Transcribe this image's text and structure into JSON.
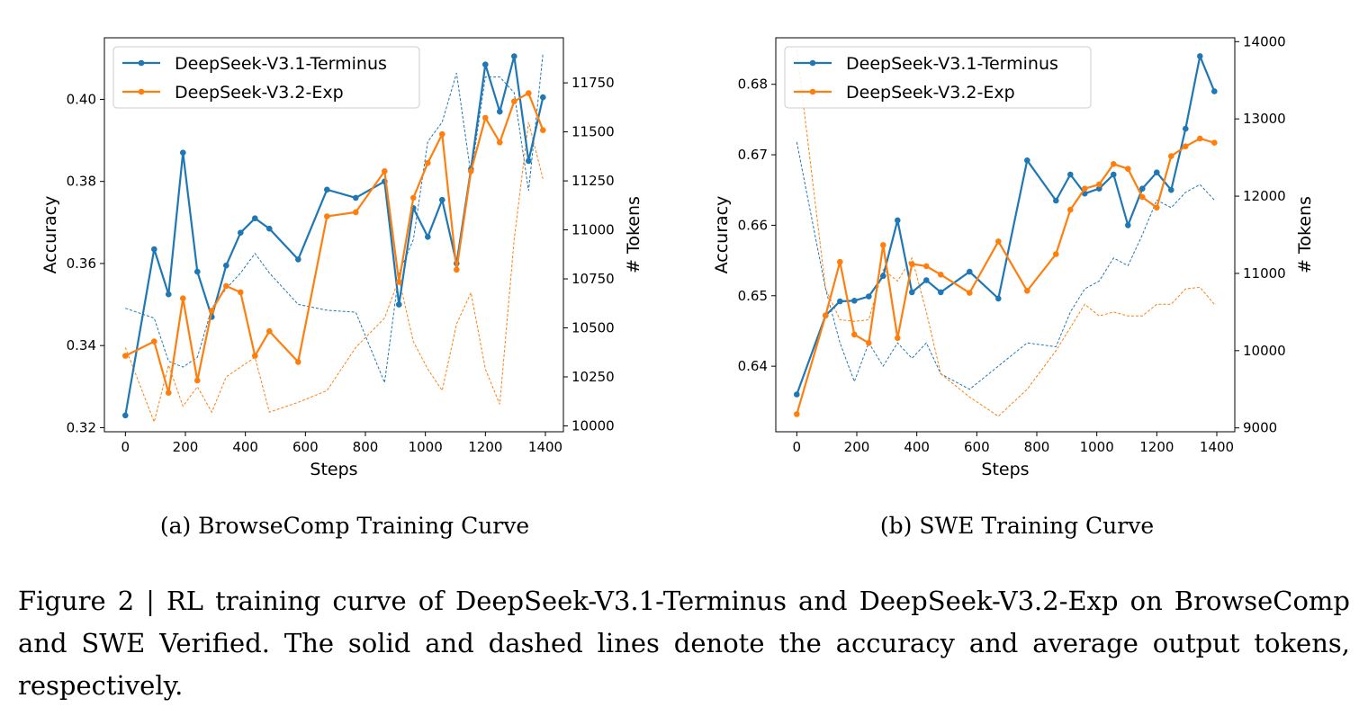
{
  "caption": "Figure 2 | RL training curve of DeepSeek-V3.1-Terminus and DeepSeek-V3.2-Exp on BrowseComp and SWE Verified. The solid and dashed lines denote the accuracy and average output tokens, respectively.",
  "colors": {
    "v31": "#1f77b4",
    "v32": "#ff7f0e"
  },
  "chart_data": [
    {
      "type": "line",
      "subcaption": "(a) BrowseComp Training Curve",
      "xlabel": "Steps",
      "ylabel": "Accuracy",
      "y2label": "# Tokens",
      "xlim": [
        -70,
        1460
      ],
      "ylim": [
        0.319,
        0.415
      ],
      "y2lim": [
        9970,
        11980
      ],
      "xticks": [
        0,
        200,
        400,
        600,
        800,
        1000,
        1200,
        1400
      ],
      "yticks": [
        0.32,
        0.34,
        0.36,
        0.38,
        0.4
      ],
      "ytick_labels": [
        "0.32",
        "0.34",
        "0.36",
        "0.38",
        "0.40"
      ],
      "y2ticks": [
        10000,
        10250,
        10500,
        10750,
        11000,
        11250,
        11500,
        11750
      ],
      "y2tick_labels": [
        "10000",
        "10250",
        "10500",
        "10750",
        "11000",
        "11250",
        "11500",
        "11750"
      ],
      "legend_position": "upper left",
      "series": [
        {
          "name": "DeepSeek-V3.1-Terminus",
          "color_key": "v31",
          "axis": "accuracy",
          "x": [
            0,
            96,
            144,
            192,
            240,
            288,
            336,
            384,
            432,
            480,
            576,
            672,
            768,
            864,
            912,
            960,
            1008,
            1056,
            1104,
            1152,
            1200,
            1248,
            1296,
            1344,
            1392
          ],
          "y": [
            0.323,
            0.3635,
            0.3525,
            0.387,
            0.358,
            0.347,
            0.3595,
            0.3675,
            0.371,
            0.3685,
            0.361,
            0.378,
            0.376,
            0.38,
            0.35,
            0.3735,
            0.3665,
            0.3755,
            0.36,
            0.383,
            0.4085,
            0.397,
            0.4105,
            0.385,
            0.4005
          ]
        },
        {
          "name": "DeepSeek-V3.2-Exp",
          "color_key": "v32",
          "axis": "accuracy",
          "x": [
            0,
            96,
            144,
            192,
            240,
            288,
            336,
            384,
            432,
            480,
            576,
            672,
            768,
            864,
            912,
            960,
            1008,
            1056,
            1104,
            1152,
            1200,
            1248,
            1296,
            1344,
            1392
          ],
          "y": [
            0.3375,
            0.341,
            0.3285,
            0.3515,
            0.3315,
            0.3485,
            0.3545,
            0.353,
            0.3375,
            0.3435,
            0.336,
            0.3715,
            0.3725,
            0.3825,
            0.3555,
            0.376,
            0.3845,
            0.3915,
            0.3585,
            0.3825,
            0.3955,
            0.3895,
            0.3995,
            0.4015,
            0.3925
          ]
        },
        {
          "name": "DeepSeek-V3.1-Terminus",
          "color_key": "v31",
          "axis": "tokens",
          "x": [
            0,
            96,
            144,
            192,
            240,
            288,
            336,
            384,
            432,
            480,
            576,
            672,
            768,
            864,
            912,
            960,
            1008,
            1056,
            1104,
            1152,
            1200,
            1248,
            1296,
            1344,
            1392
          ],
          "y": [
            10600,
            10550,
            10330,
            10300,
            10350,
            10600,
            10700,
            10780,
            10880,
            10780,
            10620,
            10590,
            10580,
            10220,
            10780,
            10950,
            11450,
            11550,
            11800,
            11280,
            11780,
            11780,
            11700,
            11200,
            11900
          ]
        },
        {
          "name": "DeepSeek-V3.2-Exp",
          "color_key": "v32",
          "axis": "tokens",
          "x": [
            0,
            96,
            144,
            192,
            240,
            288,
            336,
            384,
            432,
            480,
            576,
            672,
            768,
            864,
            912,
            960,
            1008,
            1056,
            1104,
            1152,
            1200,
            1248,
            1296,
            1344,
            1392
          ],
          "y": [
            10400,
            10020,
            10310,
            10100,
            10200,
            10070,
            10250,
            10300,
            10350,
            10070,
            10120,
            10180,
            10400,
            10550,
            10750,
            10430,
            10290,
            10180,
            10520,
            10680,
            10290,
            10110,
            10950,
            11550,
            11260
          ]
        }
      ]
    },
    {
      "type": "line",
      "subcaption": "(b) SWE Training Curve",
      "xlabel": "Steps",
      "ylabel": "Accuracy",
      "y2label": "# Tokens",
      "xlim": [
        -70,
        1460
      ],
      "ylim": [
        0.6307,
        0.6866
      ],
      "y2lim": [
        8950,
        14050
      ],
      "xticks": [
        0,
        200,
        400,
        600,
        800,
        1000,
        1200,
        1400
      ],
      "yticks": [
        0.64,
        0.65,
        0.66,
        0.67,
        0.68
      ],
      "ytick_labels": [
        "0.64",
        "0.65",
        "0.66",
        "0.67",
        "0.68"
      ],
      "y2ticks": [
        9000,
        10000,
        11000,
        12000,
        13000,
        14000
      ],
      "y2tick_labels": [
        "9000",
        "10000",
        "11000",
        "12000",
        "13000",
        "14000"
      ],
      "legend_position": "upper left",
      "series": [
        {
          "name": "DeepSeek-V3.1-Terminus",
          "color_key": "v31",
          "axis": "accuracy",
          "x": [
            0,
            96,
            144,
            192,
            240,
            288,
            336,
            384,
            432,
            480,
            576,
            672,
            768,
            864,
            912,
            960,
            1008,
            1056,
            1104,
            1152,
            1200,
            1248,
            1296,
            1344,
            1392
          ],
          "y": [
            0.636,
            0.6472,
            0.6492,
            0.6493,
            0.6499,
            0.6528,
            0.6607,
            0.6505,
            0.6522,
            0.6505,
            0.6534,
            0.6496,
            0.6692,
            0.6635,
            0.6672,
            0.6645,
            0.6652,
            0.6672,
            0.66,
            0.6652,
            0.6675,
            0.665,
            0.6737,
            0.684,
            0.679
          ]
        },
        {
          "name": "DeepSeek-V3.2-Exp",
          "color_key": "v32",
          "axis": "accuracy",
          "x": [
            0,
            96,
            144,
            192,
            240,
            288,
            336,
            384,
            432,
            480,
            576,
            672,
            768,
            864,
            912,
            960,
            1008,
            1056,
            1104,
            1152,
            1200,
            1248,
            1296,
            1344,
            1392
          ],
          "y": [
            0.6332,
            0.6472,
            0.6548,
            0.6445,
            0.6433,
            0.6572,
            0.644,
            0.6545,
            0.6542,
            0.653,
            0.6504,
            0.6577,
            0.6507,
            0.6559,
            0.6622,
            0.6652,
            0.6658,
            0.6687,
            0.668,
            0.664,
            0.6625,
            0.6698,
            0.6712,
            0.6723,
            0.6717
          ]
        },
        {
          "name": "DeepSeek-V3.1-Terminus",
          "color_key": "v31",
          "axis": "tokens",
          "x": [
            0,
            96,
            144,
            192,
            240,
            288,
            336,
            384,
            432,
            480,
            576,
            672,
            768,
            864,
            912,
            960,
            1008,
            1056,
            1104,
            1152,
            1200,
            1248,
            1296,
            1344,
            1392
          ],
          "y": [
            12700,
            10800,
            10100,
            9600,
            10100,
            9800,
            10100,
            9900,
            10100,
            9700,
            9500,
            9800,
            10100,
            10050,
            10500,
            10800,
            10900,
            11200,
            11100,
            11500,
            11950,
            11850,
            12050,
            12150,
            11950
          ]
        },
        {
          "name": "DeepSeek-V3.2-Exp",
          "color_key": "v32",
          "axis": "tokens",
          "x": [
            0,
            96,
            144,
            192,
            240,
            288,
            336,
            384,
            432,
            480,
            576,
            672,
            768,
            864,
            912,
            960,
            1008,
            1056,
            1104,
            1152,
            1200,
            1248,
            1296,
            1344,
            1392
          ],
          "y": [
            13900,
            10800,
            10400,
            10380,
            10400,
            11050,
            10900,
            11200,
            10500,
            9700,
            9400,
            9150,
            9500,
            10000,
            10300,
            10600,
            10450,
            10500,
            10450,
            10450,
            10600,
            10600,
            10800,
            10820,
            10600
          ]
        }
      ]
    }
  ]
}
